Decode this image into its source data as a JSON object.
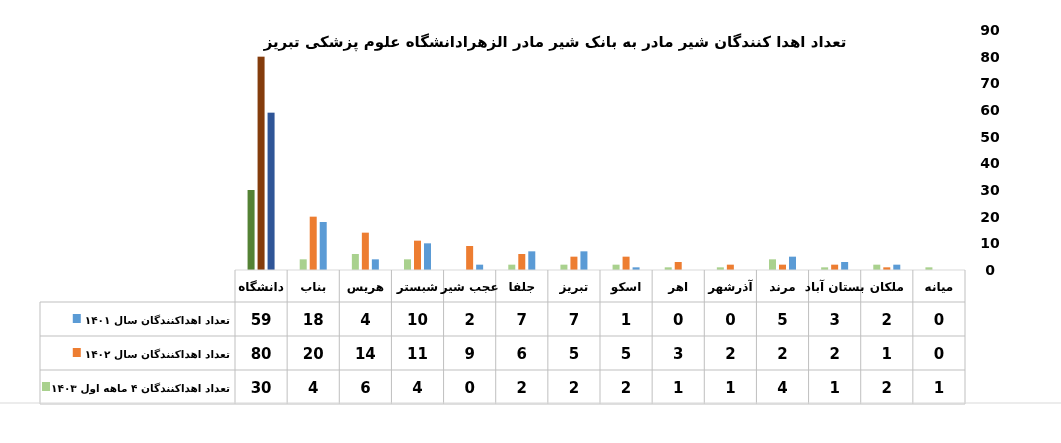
{
  "chart_data": {
    "type": "bar",
    "title": "تعداد اهدا کنندگان شیر مادر به بانک شیر مادر الزهرادانشگاه علوم پزشکی تبریز",
    "categories": [
      "دانشگاه",
      "بناب",
      "هریس",
      "شبستر",
      "عجب شیر",
      "جلفا",
      "تبریز",
      "اسکو",
      "اهر",
      "آذرشهر",
      "مرند",
      "بستان آباد",
      "ملکان",
      "میانه"
    ],
    "series": [
      {
        "name": "تعداد اهداکنندگان ۴ ماهه اول ۱۴۰۳",
        "color": "#a9d18e",
        "colors": [
          "#548235",
          "#a9d18e",
          "#a9d18e",
          "#a9d18e",
          "#a9d18e",
          "#a9d18e",
          "#a9d18e",
          "#a9d18e",
          "#a9d18e",
          "#a9d18e",
          "#a9d18e",
          "#a9d18e",
          "#a9d18e",
          "#a9d18e"
        ],
        "values": [
          30,
          4,
          6,
          4,
          0,
          2,
          2,
          2,
          1,
          1,
          4,
          1,
          2,
          1
        ]
      },
      {
        "name": "تعداد اهداکنندگان سال ۱۴۰۲",
        "color": "#ed7d31",
        "colors": [
          "#843c0c",
          "#ed7d31",
          "#ed7d31",
          "#ed7d31",
          "#ed7d31",
          "#ed7d31",
          "#ed7d31",
          "#ed7d31",
          "#ed7d31",
          "#ed7d31",
          "#ed7d31",
          "#ed7d31",
          "#ed7d31",
          "#ed7d31"
        ],
        "values": [
          80,
          20,
          14,
          11,
          9,
          6,
          5,
          5,
          3,
          2,
          2,
          2,
          1,
          0
        ]
      },
      {
        "name": "تعداد اهداکنندگان سال ۱۴۰۱",
        "color": "#5b9bd5",
        "colors": [
          "#2f5597",
          "#5b9bd5",
          "#5b9bd5",
          "#5b9bd5",
          "#5b9bd5",
          "#5b9bd5",
          "#5b9bd5",
          "#5b9bd5",
          "#5b9bd5",
          "#5b9bd5",
          "#5b9bd5",
          "#5b9bd5",
          "#5b9bd5",
          "#5b9bd5"
        ],
        "values": [
          59,
          18,
          4,
          10,
          2,
          7,
          7,
          1,
          0,
          0,
          5,
          3,
          2,
          0
        ]
      }
    ],
    "ylim": [
      0,
      90
    ],
    "yticks": [
      0,
      10,
      20,
      30,
      40,
      50,
      60,
      70,
      80,
      90
    ],
    "data_labels": true,
    "legend": "bottom left"
  }
}
